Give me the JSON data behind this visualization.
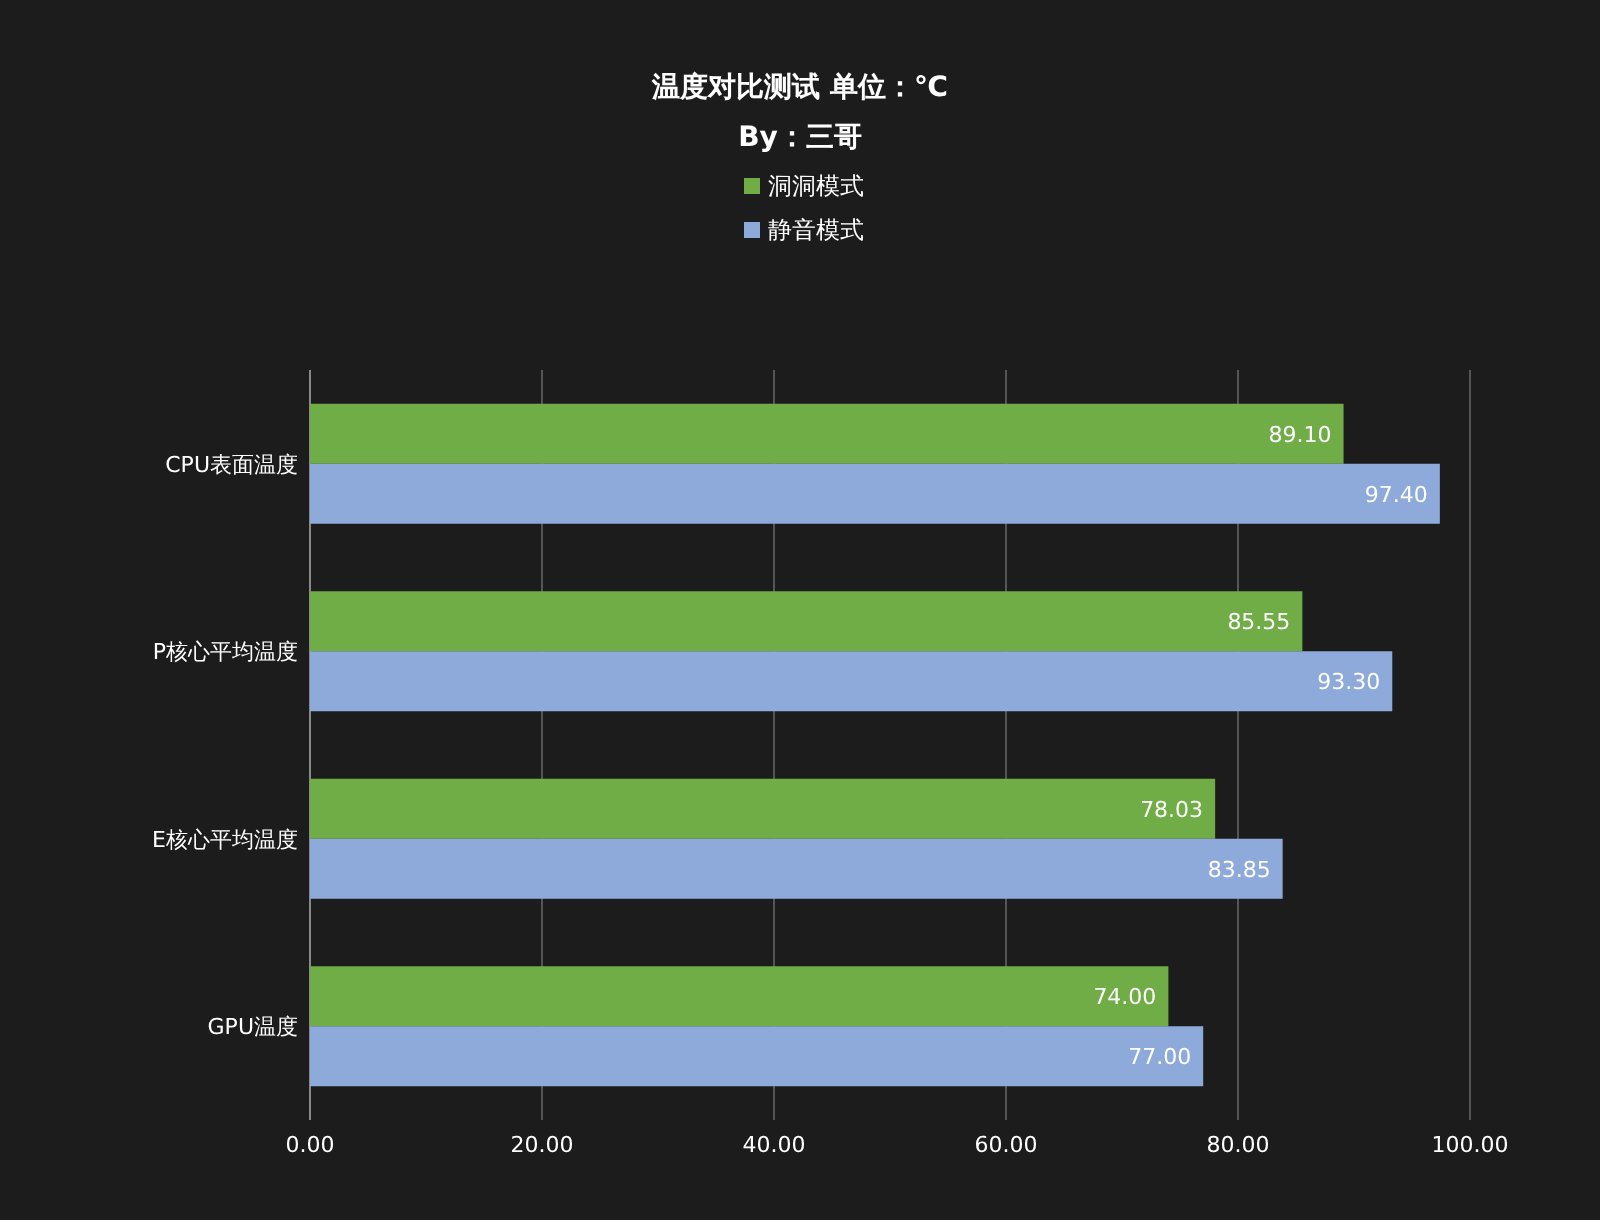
{
  "chart_data": {
    "type": "bar",
    "orientation": "horizontal",
    "title": "温度对比测试 单位：℃",
    "subtitle": "By：三哥",
    "categories": [
      "CPU表面温度",
      "P核心平均温度",
      "E核心平均温度",
      "GPU温度"
    ],
    "series": [
      {
        "name": "洞洞模式",
        "color": "#70ad47",
        "values": [
          89.1,
          85.55,
          78.03,
          74.0
        ],
        "value_labels": [
          "89.10",
          "85.55",
          "78.03",
          "74.00"
        ]
      },
      {
        "name": "静音模式",
        "color": "#8eaadb",
        "values": [
          97.4,
          93.3,
          83.85,
          77.0
        ],
        "value_labels": [
          "97.40",
          "93.30",
          "83.85",
          "77.00"
        ]
      }
    ],
    "xlim": [
      0,
      100
    ],
    "xticks": [
      {
        "value": 0,
        "label": "0.00"
      },
      {
        "value": 20,
        "label": "20.00"
      },
      {
        "value": 40,
        "label": "40.00"
      },
      {
        "value": 60,
        "label": "60.00"
      },
      {
        "value": 80,
        "label": "80.00"
      },
      {
        "value": 100,
        "label": "100.00"
      }
    ],
    "grid": "x",
    "legend": "top"
  }
}
